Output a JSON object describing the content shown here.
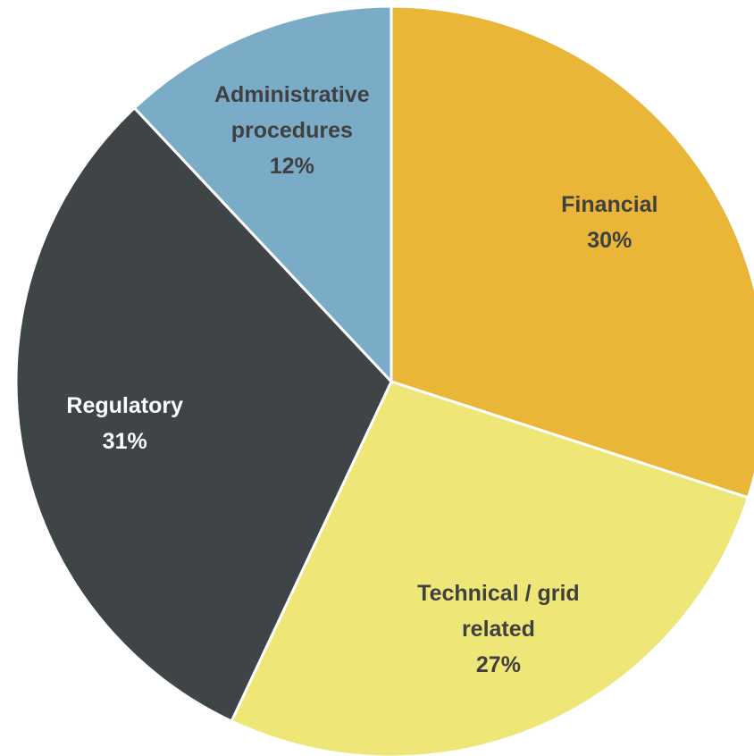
{
  "chart_data": {
    "type": "pie",
    "categories": [
      "Financial",
      "Technical / grid related",
      "Regulatory",
      "Administrative procedures"
    ],
    "values": [
      30,
      27,
      31,
      12
    ],
    "value_labels": [
      "30%",
      "27%",
      "31%",
      "12%"
    ],
    "colors": [
      "#E9B637",
      "#EEE677",
      "#3F4447",
      "#7AACC8"
    ],
    "label_colors": [
      "#404040",
      "#404040",
      "#ffffff",
      "#404040"
    ]
  }
}
